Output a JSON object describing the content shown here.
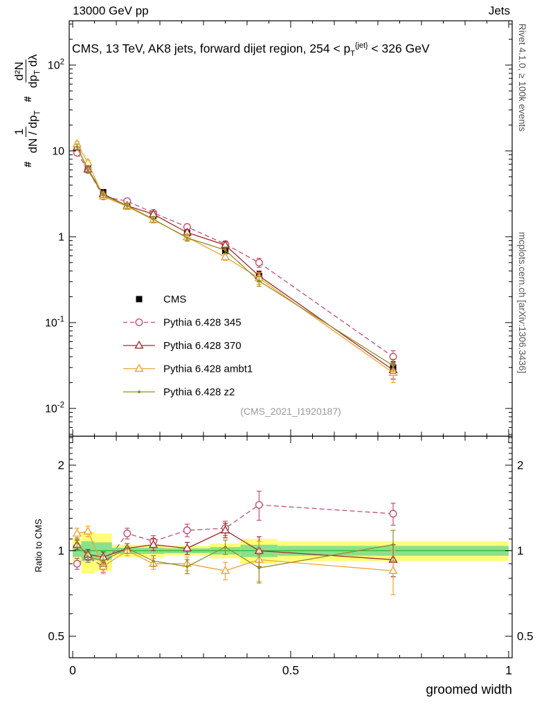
{
  "header": {
    "left": "13000 GeV pp",
    "right": "Jets"
  },
  "plot_title": "CMS, 13 TeV, AK8 jets, forward dijet region, 254 < p_T_^{jet}^ < 326 GeV",
  "ylabel": {
    "hash1": "#",
    "frac1_num": "1",
    "frac1_den": "dN / dp_T_",
    "hash2": "#",
    "frac2_num": "d²N",
    "frac2_den": "dp_T_ dλ"
  },
  "ratio_label": "Ratio to CMS",
  "xlabel": "groomed width",
  "side_texts": {
    "top_right": "Rivet 4.1.0, ≥ 100k events",
    "bottom_right": "mcplots.cern.ch [arXiv:1306.3436]"
  },
  "watermark": "(CMS_2021_I1920187)",
  "colors": {
    "cms": "#000000",
    "p345": "#c0506e",
    "p370": "#9e2b2b",
    "ambt1": "#f0a132",
    "z2": "#8e8e28",
    "band_yellow": "#ffff78",
    "band_green": "#8ce08c",
    "ref_line_green": "#33b433",
    "watermark_gray": "#9a9a9a",
    "side_text_gray": "#555555"
  },
  "chart_data": [
    {
      "type": "line",
      "panel": "main",
      "title": "CMS, 13 TeV, AK8 jets, forward dijet region, 254 < pT^{jet} < 326 GeV",
      "ylog": true,
      "xlim": [
        -0.008,
        1.008
      ],
      "ylim": [
        0.00475,
        328
      ],
      "xticks": [
        {
          "v": 0,
          "label": "0"
        },
        {
          "v": 0.5,
          "label": "0.5"
        },
        {
          "v": 1,
          "label": "1"
        }
      ],
      "yticks": [
        {
          "v": 0.01,
          "label": "10^-2^"
        },
        {
          "v": 0.1,
          "label": "10^-1^"
        },
        {
          "v": 1,
          "label": "1"
        },
        {
          "v": 10,
          "label": "10"
        },
        {
          "v": 100,
          "label": "10^2^"
        }
      ],
      "x": [
        0.01,
        0.035,
        0.07,
        0.125,
        0.185,
        0.2625,
        0.35,
        0.4275,
        0.735
      ],
      "series": [
        {
          "name": "CMS",
          "color": "#000000",
          "marker": "square-filled",
          "line": "none",
          "values": [
            10.5,
            6.3,
            3.3,
            2.25,
            1.75,
            1.1,
            0.68,
            0.35,
            0.03
          ],
          "yerr": [
            0.9,
            0.5,
            0.25,
            0.15,
            0.12,
            0.08,
            0.05,
            0.04,
            0.005
          ]
        },
        {
          "name": "Pythia 6.428 345",
          "color": "#c0506e",
          "marker": "circle-open",
          "line": "dashed",
          "values": [
            9.5,
            6.0,
            2.95,
            2.6,
            1.9,
            1.3,
            0.82,
            0.5,
            0.04
          ],
          "yerr": [
            0.7,
            0.4,
            0.2,
            0.18,
            0.14,
            0.1,
            0.07,
            0.06,
            0.007
          ]
        },
        {
          "name": "Pythia 6.428 370",
          "color": "#9e2b2b",
          "marker": "triangle-open",
          "line": "solid",
          "values": [
            11.0,
            6.1,
            3.15,
            2.3,
            1.83,
            1.12,
            0.8,
            0.35,
            0.028
          ],
          "yerr": [
            0.8,
            0.45,
            0.22,
            0.16,
            0.13,
            0.09,
            0.07,
            0.05,
            0.006
          ]
        },
        {
          "name": "Pythia 6.428 ambt1",
          "color": "#f0a132",
          "marker": "triangle-open",
          "line": "solid",
          "values": [
            12.0,
            7.3,
            2.95,
            2.25,
            1.57,
            0.99,
            0.58,
            0.33,
            0.026
          ],
          "yerr": [
            0.9,
            0.5,
            0.2,
            0.15,
            0.12,
            0.08,
            0.05,
            0.05,
            0.006
          ]
        },
        {
          "name": "Pythia 6.428 z2",
          "color": "#8e8e28",
          "marker": "dot",
          "line": "solid",
          "values": [
            11.2,
            6.0,
            3.05,
            2.3,
            1.6,
            0.97,
            0.7,
            0.305,
            0.0315
          ],
          "yerr": [
            0.8,
            0.45,
            0.2,
            0.15,
            0.12,
            0.08,
            0.06,
            0.04,
            0.006
          ]
        }
      ]
    },
    {
      "type": "line",
      "panel": "ratio",
      "ylog": true,
      "xlim": [
        -0.008,
        1.008
      ],
      "ylim": [
        0.42,
        2.53
      ],
      "xticks": [
        {
          "v": 0,
          "label": "0"
        },
        {
          "v": 0.5,
          "label": "0.5"
        },
        {
          "v": 1,
          "label": "1"
        }
      ],
      "yticks": [
        {
          "v": 0.5,
          "label": "0.5"
        },
        {
          "v": 1,
          "label": "1"
        },
        {
          "v": 2,
          "label": "2"
        }
      ],
      "bin_edges": [
        0,
        0.02,
        0.05,
        0.09,
        0.16,
        0.21,
        0.315,
        0.385,
        0.47,
        1.0
      ],
      "bands": {
        "yellow": [
          [
            0.9,
            1.1
          ],
          [
            0.83,
            1.17
          ],
          [
            0.85,
            1.15
          ],
          [
            0.95,
            1.05
          ],
          [
            0.95,
            1.05
          ],
          [
            0.96,
            1.04
          ],
          [
            0.94,
            1.06
          ],
          [
            0.9,
            1.1
          ],
          [
            0.92,
            1.08
          ]
        ],
        "green": [
          [
            0.95,
            1.05
          ],
          [
            0.92,
            1.08
          ],
          [
            0.93,
            1.07
          ],
          [
            0.975,
            1.025
          ],
          [
            0.975,
            1.025
          ],
          [
            0.98,
            1.02
          ],
          [
            0.97,
            1.03
          ],
          [
            0.95,
            1.05
          ],
          [
            0.96,
            1.04
          ]
        ]
      },
      "x": [
        0.01,
        0.035,
        0.07,
        0.125,
        0.185,
        0.2625,
        0.35,
        0.4275,
        0.735
      ],
      "series": [
        {
          "name": "Pythia 6.428 345",
          "color": "#c0506e",
          "marker": "circle-open",
          "line": "dashed",
          "values": [
            0.9,
            0.95,
            0.88,
            1.15,
            1.08,
            1.18,
            1.2,
            1.45,
            1.35
          ],
          "yerr": [
            0.04,
            0.04,
            0.04,
            0.05,
            0.05,
            0.06,
            0.07,
            0.17,
            0.12
          ]
        },
        {
          "name": "Pythia 6.428 370",
          "color": "#9e2b2b",
          "marker": "triangle-open",
          "line": "solid",
          "values": [
            1.05,
            0.97,
            0.95,
            1.02,
            1.05,
            1.02,
            1.18,
            1.0,
            0.93
          ],
          "yerr": [
            0.04,
            0.04,
            0.04,
            0.04,
            0.05,
            0.05,
            0.07,
            0.12,
            0.12
          ]
        },
        {
          "name": "Pythia 6.428 ambt1",
          "color": "#f0a132",
          "marker": "triangle-open",
          "line": "solid",
          "values": [
            1.15,
            1.17,
            0.88,
            1.0,
            0.9,
            0.9,
            0.85,
            0.93,
            0.85
          ],
          "yerr": [
            0.05,
            0.05,
            0.05,
            0.04,
            0.04,
            0.05,
            0.06,
            0.15,
            0.15
          ]
        },
        {
          "name": "Pythia 6.428 z2",
          "color": "#8e8e28",
          "marker": "dot",
          "line": "solid",
          "values": [
            1.07,
            0.95,
            0.92,
            1.02,
            0.92,
            0.88,
            1.03,
            0.87,
            1.05
          ],
          "yerr": [
            0.04,
            0.04,
            0.04,
            0.04,
            0.04,
            0.05,
            0.06,
            0.1,
            0.13
          ]
        }
      ]
    }
  ]
}
